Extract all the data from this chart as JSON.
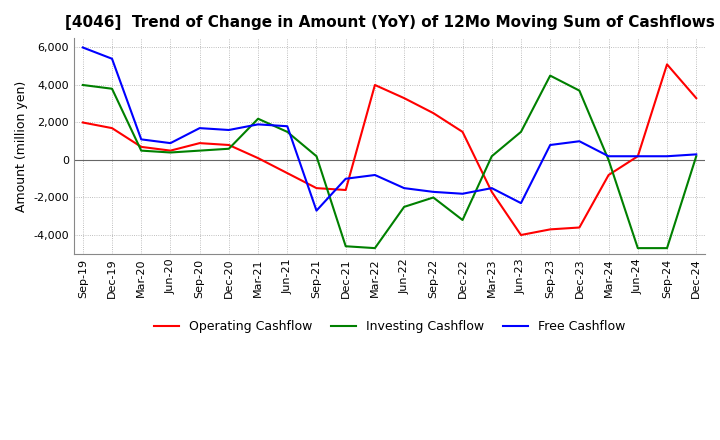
{
  "title": "[4046]  Trend of Change in Amount (YoY) of 12Mo Moving Sum of Cashflows",
  "ylabel": "Amount (million yen)",
  "ylim": [
    -5000,
    6500
  ],
  "yticks": [
    -4000,
    -2000,
    0,
    2000,
    4000,
    6000
  ],
  "x_labels": [
    "Sep-19",
    "Dec-19",
    "Mar-20",
    "Jun-20",
    "Sep-20",
    "Dec-20",
    "Mar-21",
    "Jun-21",
    "Sep-21",
    "Dec-21",
    "Mar-22",
    "Jun-22",
    "Sep-22",
    "Dec-22",
    "Mar-23",
    "Jun-23",
    "Sep-23",
    "Dec-23",
    "Mar-24",
    "Jun-24",
    "Sep-24",
    "Dec-24"
  ],
  "operating": [
    2000,
    1700,
    700,
    500,
    900,
    800,
    100,
    -700,
    -1500,
    -1600,
    4000,
    3300,
    2500,
    1500,
    -1700,
    -4000,
    -3700,
    -3600,
    -800,
    200,
    5100,
    3300
  ],
  "investing": [
    4000,
    3800,
    500,
    400,
    500,
    600,
    2200,
    1500,
    200,
    -4600,
    -4700,
    -2500,
    -2000,
    -3200,
    200,
    1500,
    4500,
    3700,
    0,
    -4700,
    -4700,
    200
  ],
  "free": [
    6000,
    5400,
    1100,
    900,
    1700,
    1600,
    1900,
    1800,
    -2700,
    -1000,
    -800,
    -1500,
    -1700,
    -1800,
    -1500,
    -2300,
    800,
    1000,
    200,
    200,
    200,
    300
  ],
  "operating_color": "#ff0000",
  "investing_color": "#008000",
  "free_color": "#0000ff",
  "background_color": "#ffffff",
  "grid_color": "#aaaaaa",
  "title_fontsize": 11,
  "ylabel_fontsize": 9,
  "tick_fontsize": 8,
  "legend_fontsize": 9,
  "linewidth": 1.5
}
